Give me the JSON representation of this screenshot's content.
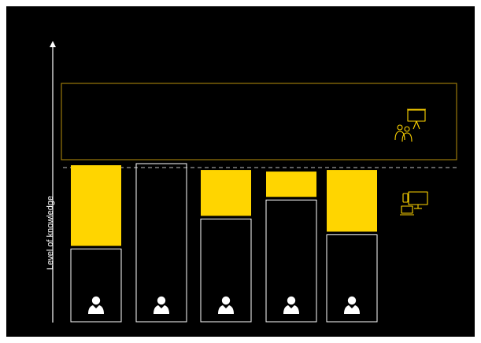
{
  "y_axis_label": "Level of knowledge",
  "colors": {
    "background": "#000000",
    "accent": "#FFD500",
    "outline": "#FFFFFF",
    "group_box": "#B8900C",
    "dashed_line": "#9A9A9A"
  },
  "icons": [
    "person-icon",
    "presentation-audience-icon",
    "devices-icon"
  ],
  "bars": [
    {
      "name": "person-1",
      "knowledge_level": 0.46,
      "gap_fill": 0.51
    },
    {
      "name": "person-2",
      "knowledge_level": 1.0,
      "gap_fill": 0.0
    },
    {
      "name": "person-3",
      "knowledge_level": 0.65,
      "gap_fill": 0.29
    },
    {
      "name": "person-4",
      "knowledge_level": 0.77,
      "gap_fill": 0.16
    },
    {
      "name": "person-5",
      "knowledge_level": 0.55,
      "gap_fill": 0.39
    }
  ]
}
